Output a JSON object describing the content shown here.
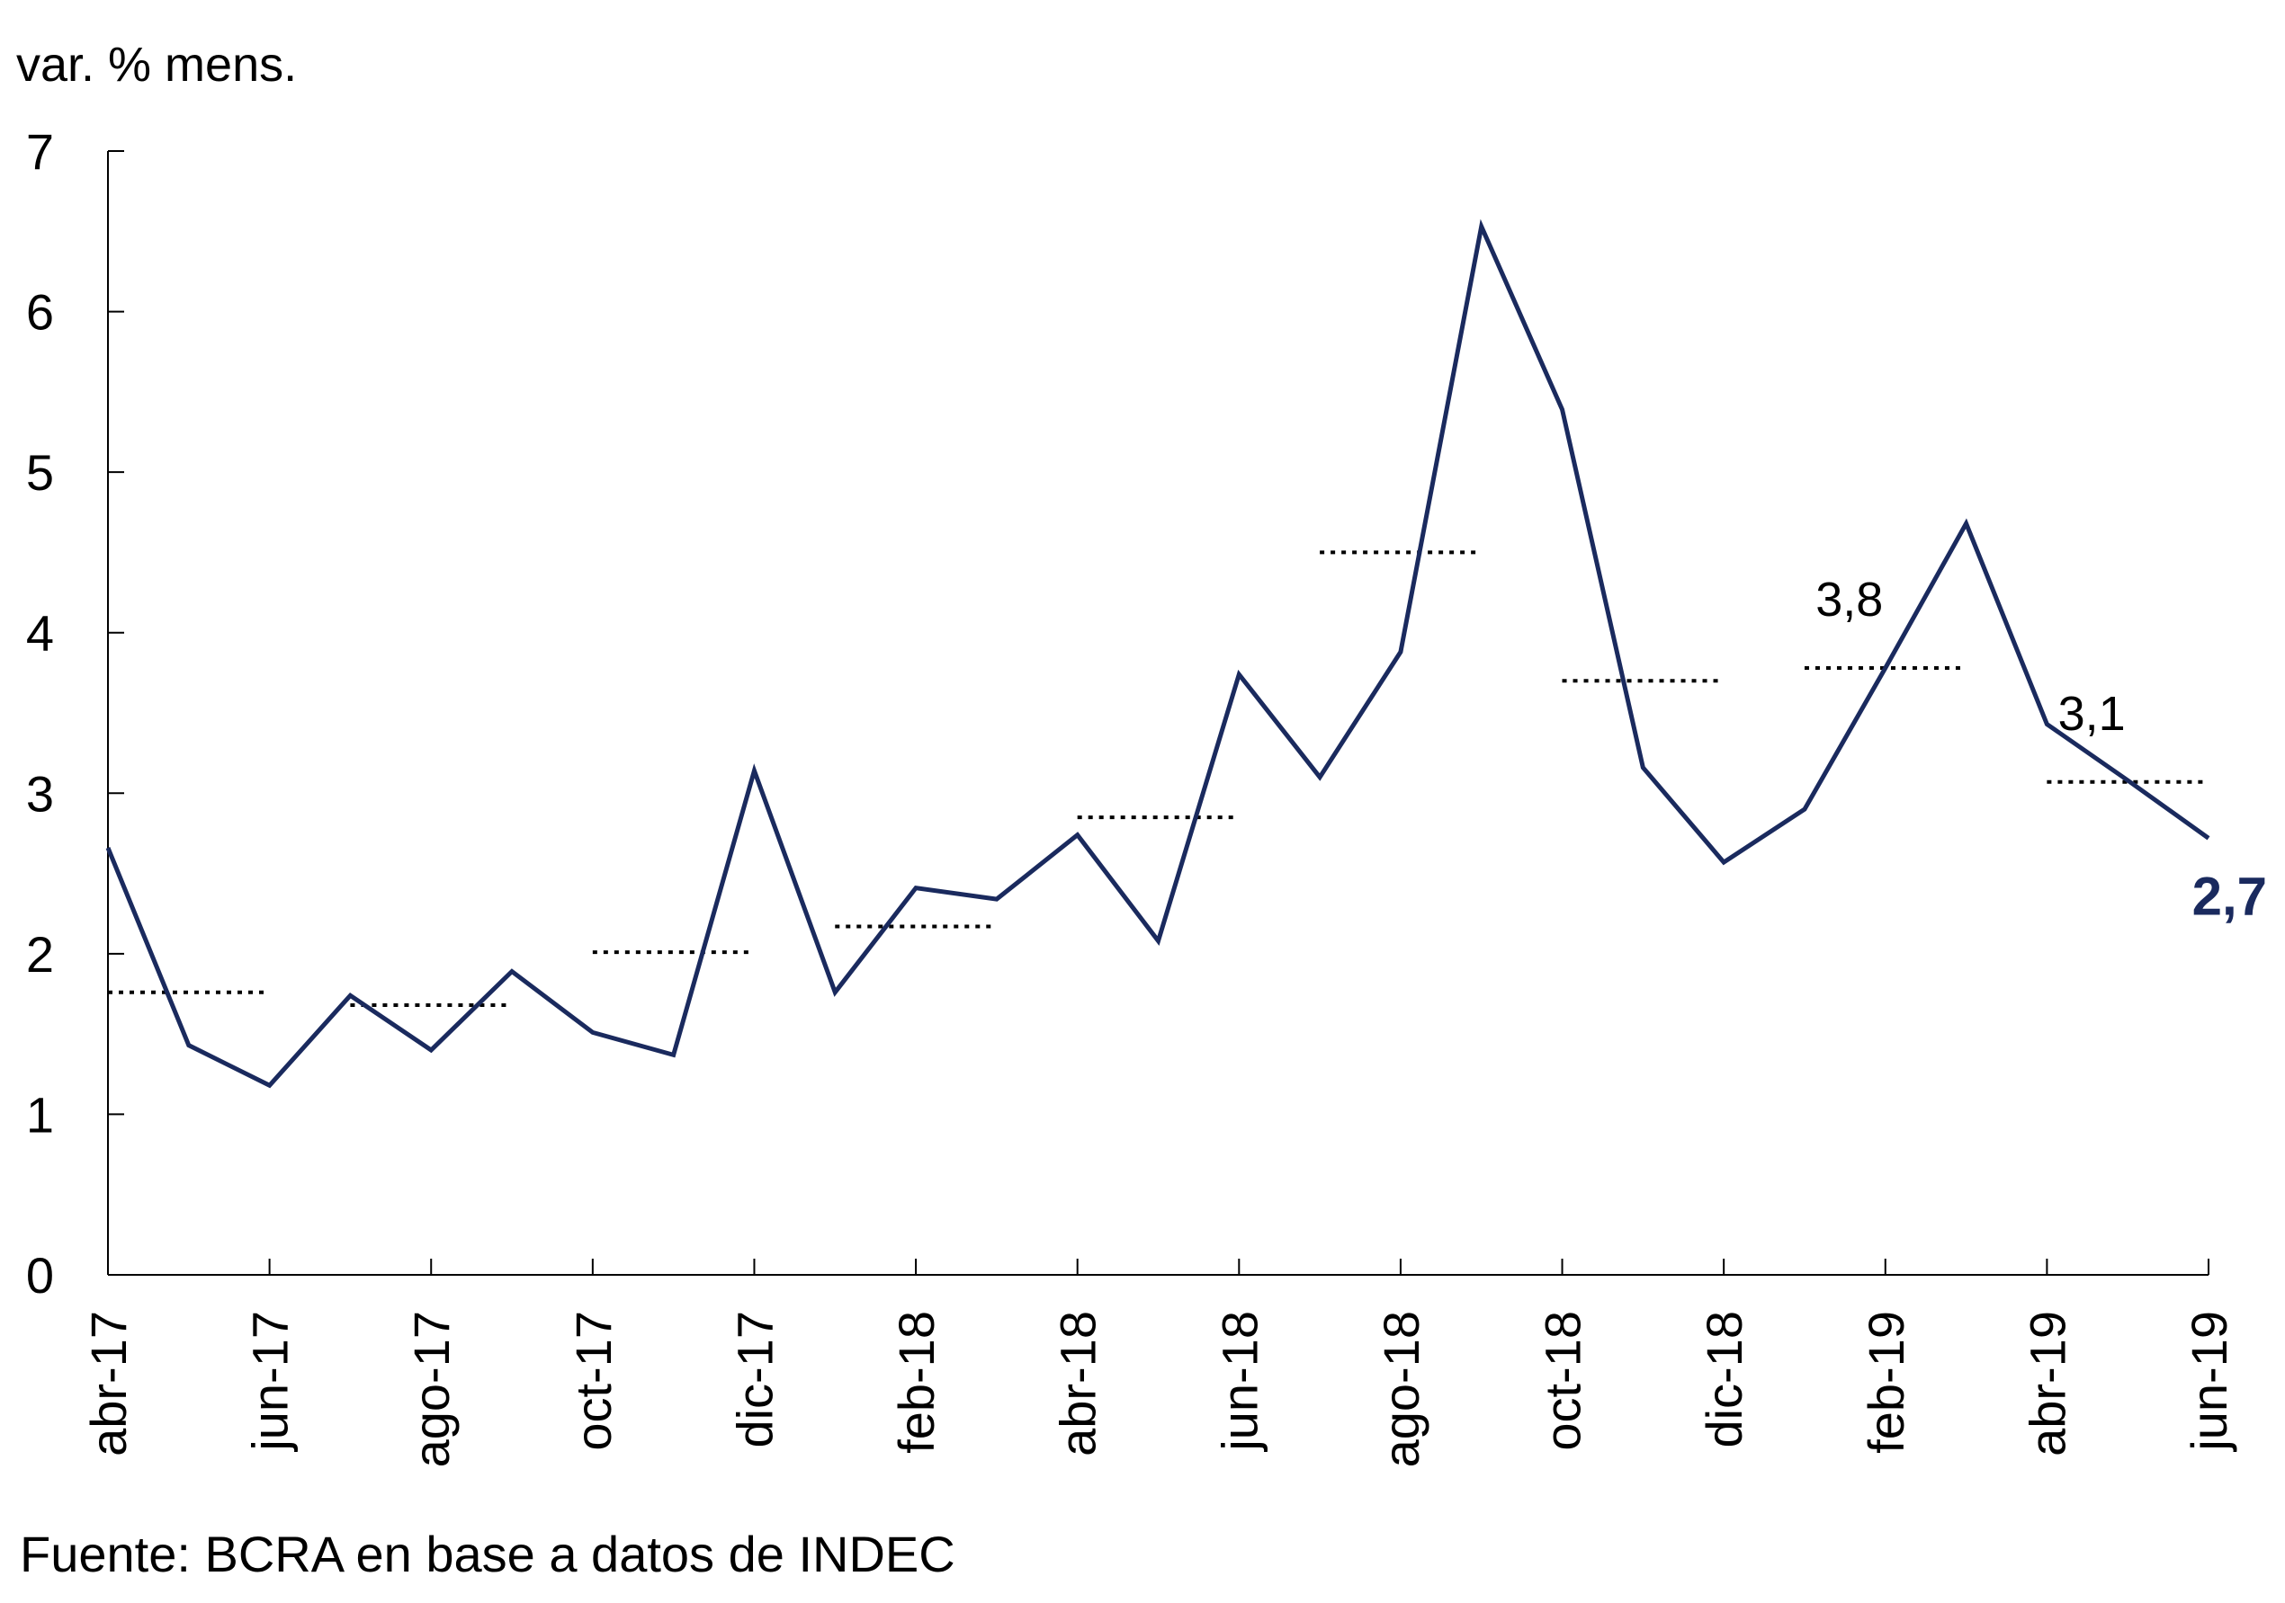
{
  "chart_data": {
    "type": "line",
    "ylabel": "var. % mens.",
    "ylim": [
      0,
      7
    ],
    "yticks": [
      "0",
      "1",
      "2",
      "3",
      "4",
      "5",
      "6",
      "7"
    ],
    "x": [
      "abr-17",
      "may-17",
      "jun-17",
      "jul-17",
      "ago-17",
      "sep-17",
      "oct-17",
      "nov-17",
      "dic-17",
      "ene-18",
      "feb-18",
      "mar-18",
      "abr-18",
      "may-18",
      "jun-18",
      "jul-18",
      "ago-18",
      "sep-18",
      "oct-18",
      "nov-18",
      "dic-18",
      "ene-19",
      "feb-19",
      "mar-19",
      "abr-19",
      "may-19",
      "jun-19"
    ],
    "x_tick_labels": [
      "abr-17",
      "jun-17",
      "ago-17",
      "oct-17",
      "dic-17",
      "feb-18",
      "abr-18",
      "jun-18",
      "ago-18",
      "oct-18",
      "dic-18",
      "feb-19",
      "abr-19",
      "jun-19"
    ],
    "series": [
      {
        "values": [
          2.66,
          1.43,
          1.18,
          1.74,
          1.4,
          1.89,
          1.51,
          1.37,
          3.14,
          1.76,
          2.41,
          2.34,
          2.74,
          2.08,
          3.74,
          3.1,
          3.88,
          6.53,
          5.39,
          3.16,
          2.57,
          2.9,
          3.78,
          4.68,
          3.43,
          3.08,
          2.72
        ],
        "color": "#1a2a5e"
      }
    ],
    "quarterly_averages": [
      {
        "start": "abr-17",
        "end": "jun-17",
        "value": 1.76
      },
      {
        "start": "jul-17",
        "end": "sep-17",
        "value": 1.68
      },
      {
        "start": "oct-17",
        "end": "dic-17",
        "value": 2.01
      },
      {
        "start": "ene-18",
        "end": "mar-18",
        "value": 2.17
      },
      {
        "start": "abr-18",
        "end": "jun-18",
        "value": 2.85
      },
      {
        "start": "jul-18",
        "end": "sep-18",
        "value": 4.5
      },
      {
        "start": "oct-18",
        "end": "dic-18",
        "value": 3.7
      },
      {
        "start": "ene-19",
        "end": "mar-19",
        "value": 3.78
      },
      {
        "start": "abr-19",
        "end": "jun-19",
        "value": 3.07
      }
    ],
    "annotations": [
      {
        "text": "3,8",
        "x": "feb-19",
        "y": 3.78
      },
      {
        "text": "3,1",
        "x": "may-19",
        "y": 3.07
      }
    ],
    "last_value_label": "2,7",
    "line_color": "#1a2a5e",
    "dotted_color": "#000000",
    "grid": false,
    "legend": "none"
  },
  "source": "Fuente: BCRA en base a datos de INDEC"
}
